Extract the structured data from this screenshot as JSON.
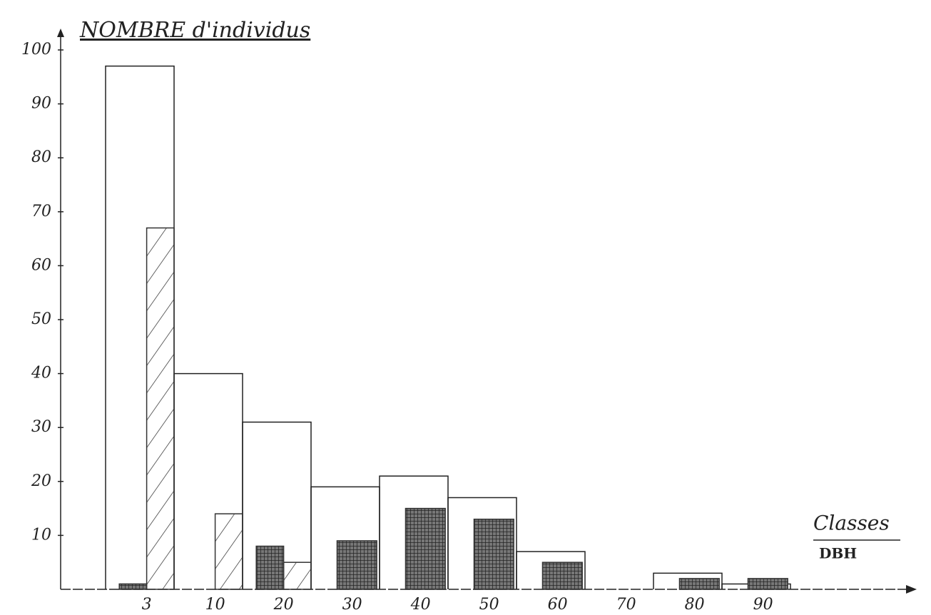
{
  "chart_data": {
    "type": "bar",
    "title": "NOMBRE d'individus",
    "x_label": "Classes",
    "x_label_sub": "DBH",
    "categories": [
      "3",
      "10",
      "20",
      "30",
      "40",
      "50",
      "60",
      "70",
      "80",
      "90"
    ],
    "series": [
      {
        "style": "outline",
        "color": "#222222",
        "values": [
          97,
          40,
          31,
          19,
          21,
          17,
          7,
          null,
          3,
          1
        ]
      },
      {
        "style": "crosshatch",
        "color": "#333333",
        "values": [
          1,
          null,
          8,
          9,
          15,
          13,
          5,
          null,
          2,
          2
        ]
      },
      {
        "style": "hatch",
        "color": "#333333",
        "values": [
          67,
          14,
          5,
          null,
          null,
          null,
          null,
          null,
          null,
          null
        ]
      }
    ],
    "ylim": [
      0,
      100
    ],
    "yticks": [
      10,
      20,
      30,
      40,
      50,
      60,
      70,
      80,
      90,
      100
    ]
  }
}
